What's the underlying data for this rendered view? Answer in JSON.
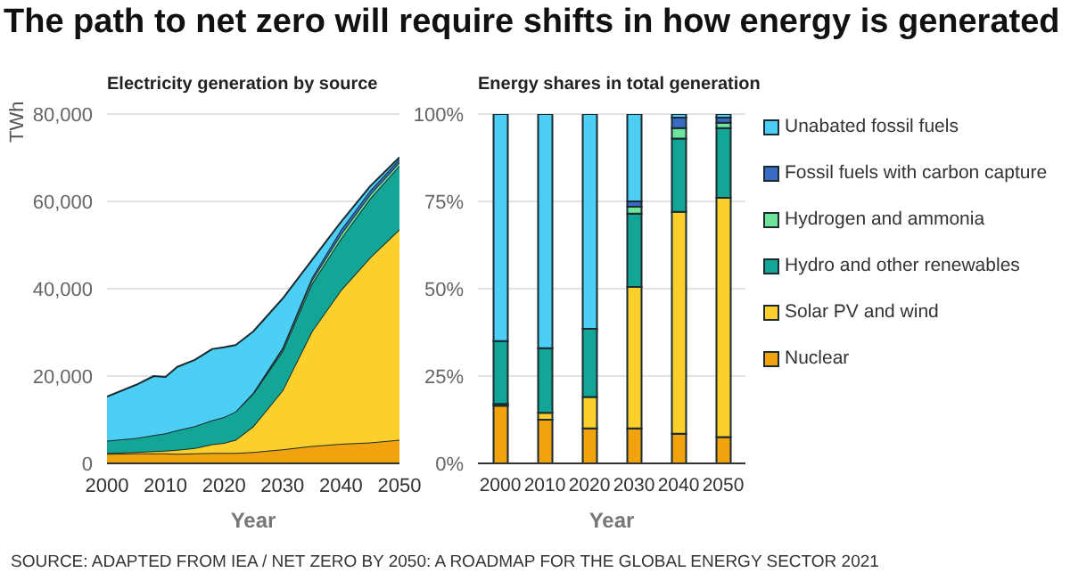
{
  "chart_data": [
    {
      "type": "area",
      "title": "The path to net zero will require shifts in how energy is generated",
      "subtitle": "Electricity generation by source",
      "xlabel": "Year",
      "ylabel": "TWh",
      "stacked": true,
      "grid": "y",
      "x": [
        2000,
        2005,
        2008,
        2010,
        2012,
        2015,
        2018,
        2020,
        2022,
        2025,
        2030,
        2035,
        2040,
        2045,
        2050
      ],
      "xlim": [
        2000,
        2050
      ],
      "xticks": [
        2000,
        2010,
        2020,
        2030,
        2040,
        2050
      ],
      "ylim": [
        0,
        80000
      ],
      "yticks": [
        0,
        {
          "value": 20000,
          "label": "20,000"
        },
        {
          "value": 40000,
          "label": "40,000"
        },
        {
          "value": 60000,
          "label": "60,000"
        },
        {
          "value": 80000,
          "label": "80,000"
        }
      ],
      "annotations": [
        "SOURCE: ADAPTED FROM IEA / NET ZERO BY 2050: A ROADMAP FOR THE GLOBAL ENERGY SECTOR 2021"
      ],
      "series": [
        {
          "color": "#f0a30c",
          "values": [
            2200,
            2300,
            2300,
            2300,
            2200,
            2300,
            2400,
            2400,
            2400,
            2600,
            3200,
            4000,
            4500,
            4800,
            5400
          ]
        },
        {
          "color": "#fcd02c",
          "values": [
            200,
            300,
            500,
            600,
            900,
            1200,
            2000,
            2300,
            3000,
            5900,
            13500,
            26200,
            35200,
            42400,
            48200
          ]
        },
        {
          "color": "#13a596",
          "values": [
            2800,
            3200,
            3700,
            4000,
            4500,
            5000,
            5500,
            5900,
            6500,
            7500,
            9000,
            10900,
            11800,
            13500,
            14600
          ]
        },
        {
          "color": "#6fe49a",
          "values": [
            null,
            null,
            null,
            null,
            null,
            null,
            null,
            null,
            null,
            100,
            500,
            800,
            1000,
            900,
            800
          ]
        },
        {
          "color": "#3a6bc4",
          "values": [
            null,
            null,
            null,
            null,
            null,
            null,
            null,
            null,
            null,
            100,
            300,
            600,
            1000,
            900,
            700
          ]
        },
        {
          "color": "#4dcff5",
          "values": [
            10100,
            12200,
            13500,
            12900,
            14500,
            15200,
            16300,
            16000,
            15200,
            14000,
            11200,
            4000,
            1800,
            1000,
            400
          ]
        }
      ]
    },
    {
      "type": "bar",
      "title": "Energy shares in total generation",
      "xlabel": "Year",
      "stacked": true,
      "grid": "y",
      "legend": "right",
      "categories": [
        "2000",
        "2010",
        "2020",
        "2030",
        "2040",
        "2050"
      ],
      "ylim": [
        0,
        100
      ],
      "yticks": [
        {
          "value": 0,
          "label": "0%"
        },
        {
          "value": 25,
          "label": "25%"
        },
        {
          "value": 50,
          "label": "50%"
        },
        {
          "value": 75,
          "label": "75%"
        },
        {
          "value": 100,
          "label": "100%"
        }
      ],
      "series": [
        {
          "name": "Nuclear",
          "color": "#f0a30c",
          "values": [
            16.5,
            12.5,
            10,
            10,
            8.5,
            7.5
          ]
        },
        {
          "name": "Solar PV and wind",
          "color": "#fcd02c",
          "values": [
            0.5,
            2,
            9,
            40.5,
            63.5,
            68.5
          ]
        },
        {
          "name": "Hydro and other renewables",
          "color": "#13a596",
          "values": [
            18,
            18.5,
            19.5,
            21,
            21,
            20
          ]
        },
        {
          "name": "Hydrogen and ammonia",
          "color": "#6fe49a",
          "values": [
            0,
            0,
            0,
            2,
            3,
            1.5
          ]
        },
        {
          "name": "Fossil fuels with carbon capture",
          "color": "#3a6bc4",
          "values": [
            0,
            0,
            0,
            1.5,
            3,
            1.5
          ]
        },
        {
          "name": "Unabated fossil fuels",
          "color": "#4dcff5",
          "values": [
            65,
            67,
            61.5,
            25,
            1,
            1
          ]
        }
      ]
    }
  ]
}
